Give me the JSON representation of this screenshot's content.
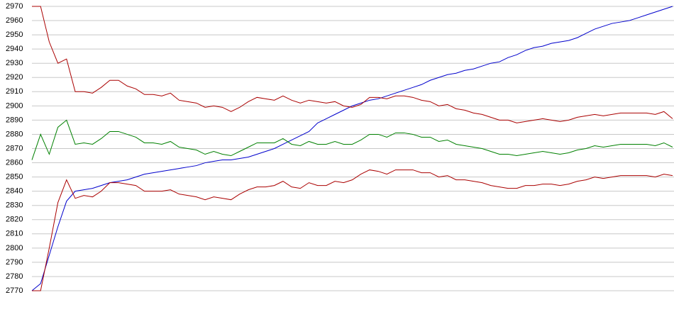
{
  "chart_data": {
    "type": "line",
    "categories": [
      null,
      null,
      null,
      null,
      null,
      null,
      null,
      null,
      null,
      null,
      null,
      null,
      null,
      null,
      null,
      null,
      null,
      null,
      null,
      null,
      null,
      null,
      null,
      null,
      null,
      null,
      null,
      null,
      null,
      null,
      null,
      null,
      null,
      null,
      null,
      null,
      null,
      null,
      null,
      null,
      null,
      null,
      null,
      null,
      null,
      null,
      null,
      null,
      null,
      null,
      null,
      null,
      null,
      null,
      null,
      null,
      null,
      null,
      null,
      null,
      null,
      null,
      null,
      null,
      null,
      null,
      null,
      null,
      null,
      null,
      null,
      null,
      null,
      null,
      null
    ],
    "series": [
      {
        "color": "#0000cc",
        "values": [
          2770,
          2775,
          2795,
          2815,
          2833,
          2840,
          2841,
          2842,
          2844,
          2846,
          2847,
          2848,
          2850,
          2852,
          2853,
          2854,
          2855,
          2856,
          2857,
          2858,
          2860,
          2861,
          2862,
          2862,
          2863,
          2864,
          2866,
          2868,
          2870,
          2873,
          2876,
          2879,
          2882,
          2888,
          2891,
          2894,
          2897,
          2900,
          2902,
          2904,
          2905,
          2907,
          2909,
          2911,
          2913,
          2915,
          2918,
          2920,
          2922,
          2923,
          2925,
          2926,
          2928,
          2930,
          2931,
          2934,
          2936,
          2939,
          2941,
          2942,
          2944,
          2945,
          2946,
          2948,
          2951,
          2954,
          2956,
          2958,
          2959,
          2960,
          2962,
          2964,
          2966,
          2968,
          2970
        ]
      },
      {
        "color": "#aa0000",
        "values": [
          2970,
          2970,
          2945,
          2930,
          2933,
          2910,
          2910,
          2909,
          2913,
          2918,
          2918,
          2914,
          2912,
          2908,
          2908,
          2907,
          2909,
          2904,
          2903,
          2902,
          2899,
          2900,
          2899,
          2896,
          2899,
          2903,
          2906,
          2905,
          2904,
          2907,
          2904,
          2902,
          2904,
          2903,
          2902,
          2903,
          2900,
          2899,
          2901,
          2906,
          2906,
          2905,
          2907,
          2907,
          2906,
          2904,
          2903,
          2900,
          2901,
          2898,
          2897,
          2895,
          2894,
          2892,
          2890,
          2890,
          2888,
          2889,
          2890,
          2891,
          2890,
          2889,
          2890,
          2892,
          2893,
          2894,
          2893,
          2894,
          2895,
          2895,
          2895,
          2895,
          2894,
          2896,
          2891
        ]
      },
      {
        "color": "#008000",
        "values": [
          2862,
          2880,
          2866,
          2885,
          2890,
          2873,
          2874,
          2873,
          2877,
          2882,
          2882,
          2880,
          2878,
          2874,
          2874,
          2873,
          2875,
          2871,
          2870,
          2869,
          2866,
          2868,
          2866,
          2865,
          2868,
          2871,
          2874,
          2874,
          2874,
          2877,
          2873,
          2872,
          2875,
          2873,
          2873,
          2875,
          2873,
          2873,
          2876,
          2880,
          2880,
          2878,
          2881,
          2881,
          2880,
          2878,
          2878,
          2875,
          2876,
          2873,
          2872,
          2871,
          2870,
          2868,
          2866,
          2866,
          2865,
          2866,
          2867,
          2868,
          2867,
          2866,
          2867,
          2869,
          2870,
          2872,
          2871,
          2872,
          2873,
          2873,
          2873,
          2873,
          2872,
          2874,
          2871
        ]
      },
      {
        "color": "#aa0000",
        "values": [
          2770,
          2770,
          2800,
          2832,
          2848,
          2835,
          2837,
          2836,
          2840,
          2846,
          2846,
          2845,
          2844,
          2840,
          2840,
          2840,
          2841,
          2838,
          2837,
          2836,
          2834,
          2836,
          2835,
          2834,
          2838,
          2841,
          2843,
          2843,
          2844,
          2847,
          2843,
          2842,
          2846,
          2844,
          2844,
          2847,
          2846,
          2848,
          2852,
          2855,
          2854,
          2852,
          2855,
          2855,
          2855,
          2853,
          2853,
          2850,
          2851,
          2848,
          2848,
          2847,
          2846,
          2844,
          2843,
          2842,
          2842,
          2844,
          2844,
          2845,
          2845,
          2844,
          2845,
          2847,
          2848,
          2850,
          2849,
          2850,
          2851,
          2851,
          2851,
          2851,
          2850,
          2852,
          2851
        ]
      }
    ],
    "ylim": [
      2770,
      2970
    ],
    "yticks": [
      2770,
      2780,
      2790,
      2800,
      2810,
      2820,
      2830,
      2840,
      2850,
      2860,
      2870,
      2880,
      2890,
      2900,
      2910,
      2920,
      2930,
      2940,
      2950,
      2960,
      2970
    ],
    "grid": true
  }
}
